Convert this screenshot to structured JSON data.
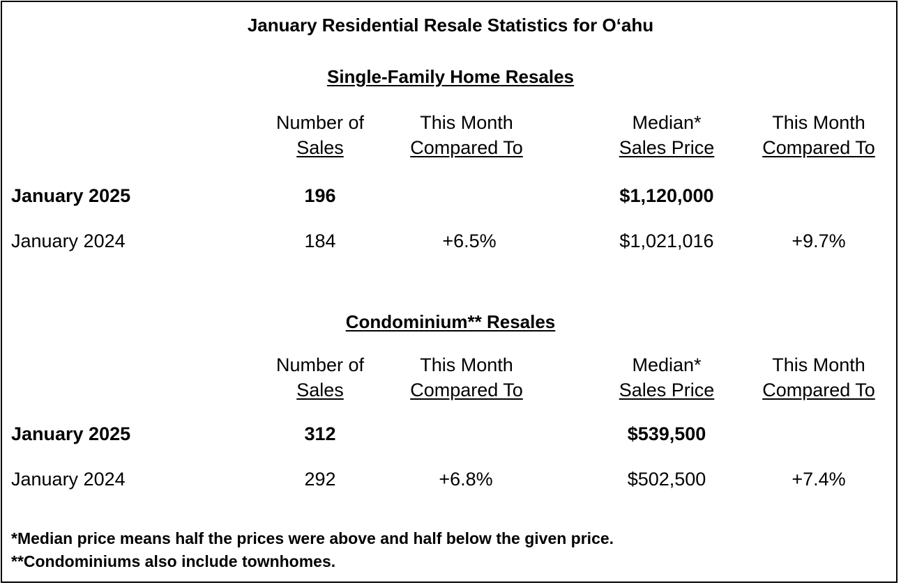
{
  "title": "January Residential Resale Statistics for O‘ahu",
  "sections": [
    {
      "heading": "Single-Family Home Resales",
      "columns": [
        {
          "line1": "Number of",
          "line2": "Sales"
        },
        {
          "line1": "This Month",
          "line2": "Compared To"
        },
        {
          "line1": "Median*",
          "line2": "Sales Price"
        },
        {
          "line1": "This Month",
          "line2": "Compared To"
        }
      ],
      "rows": [
        {
          "label": "January 2025",
          "sales": "196",
          "sales_change": "",
          "median": "$1,120,000",
          "median_change": ""
        },
        {
          "label": "January 2024",
          "sales": "184",
          "sales_change": "+6.5%",
          "median": "$1,021,016",
          "median_change": "+9.7%"
        }
      ]
    },
    {
      "heading": "Condominium** Resales",
      "columns": [
        {
          "line1": "Number of",
          "line2": "Sales"
        },
        {
          "line1": "This Month",
          "line2": "Compared To"
        },
        {
          "line1": "Median*",
          "line2": "Sales Price"
        },
        {
          "line1": "This Month",
          "line2": "Compared To"
        }
      ],
      "rows": [
        {
          "label": "January 2025",
          "sales": "312",
          "sales_change": "",
          "median": "$539,500",
          "median_change": ""
        },
        {
          "label": "January 2024",
          "sales": "292",
          "sales_change": "+6.8%",
          "median": "$502,500",
          "median_change": "+7.4%"
        }
      ]
    }
  ],
  "footnotes": [
    "*Median price means half the prices were above and half below the given price.",
    "**Condominiums also include townhomes."
  ]
}
